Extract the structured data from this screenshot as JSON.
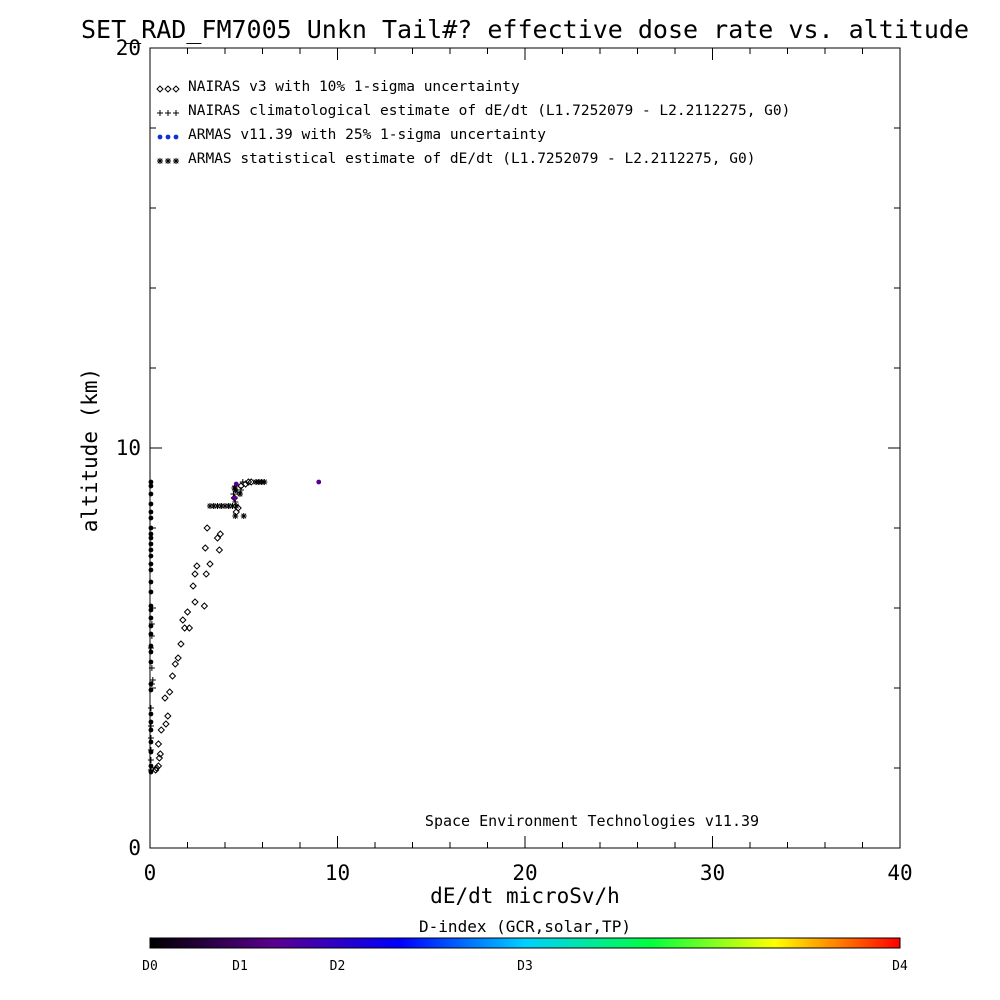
{
  "chart_data": {
    "type": "scatter",
    "title": "SET_RAD_FM7005  Unkn Tail#? effective dose rate vs. altitude",
    "xlabel": "dE/dt microSv/h",
    "ylabel": "altitude (km)",
    "xlim": [
      0,
      40
    ],
    "ylim": [
      0,
      20
    ],
    "x_ticks": [
      0,
      10,
      20,
      30,
      40
    ],
    "y_ticks": [
      0,
      10,
      20
    ],
    "grid": false,
    "legend_position": "top-left",
    "legend": [
      {
        "symbol": "◇◇◇",
        "label": "NAIRAS v3 with 10% 1-sigma uncertainty"
      },
      {
        "symbol": "+++",
        "label": "NAIRAS climatological estimate of dE/dt (L1.7252079 - L2.2112275, G0)"
      },
      {
        "symbol": "●●●",
        "label": "ARMAS v11.39 with 25% 1-sigma uncertainty"
      },
      {
        "symbol": "***",
        "label": "ARMAS statistical estimate of dE/dt (L1.7252079 - L2.2112275, G0)"
      }
    ],
    "annotation": "Space Environment Technologies v11.39",
    "colorbar": {
      "label": "D-index (GCR,solar,TP)",
      "ticks": [
        {
          "label": "D0",
          "value": 0
        },
        {
          "label": "D1",
          "value": 0.12
        },
        {
          "label": "D2",
          "value": 0.25
        },
        {
          "label": "D3",
          "value": 0.5
        },
        {
          "label": "D4",
          "value": 1.0
        }
      ],
      "stops": [
        "#000000",
        "#5a0090",
        "#0000ff",
        "#00d0ff",
        "#00ff40",
        "#ffff00",
        "#ff0000"
      ]
    },
    "series": [
      {
        "name": "NAIRAS v3 with 10% 1-sigma uncertainty",
        "marker": "diamond",
        "color": "#000000",
        "points": [
          [
            0.3,
            1.95
          ],
          [
            0.35,
            2.0
          ],
          [
            0.45,
            2.05
          ],
          [
            0.5,
            2.25
          ],
          [
            0.55,
            2.35
          ],
          [
            0.45,
            2.6
          ],
          [
            0.6,
            2.95
          ],
          [
            0.85,
            3.1
          ],
          [
            0.95,
            3.3
          ],
          [
            0.8,
            3.75
          ],
          [
            1.05,
            3.9
          ],
          [
            1.2,
            4.3
          ],
          [
            1.35,
            4.6
          ],
          [
            1.5,
            4.75
          ],
          [
            1.65,
            5.1
          ],
          [
            1.85,
            5.5
          ],
          [
            2.1,
            5.5
          ],
          [
            1.75,
            5.7
          ],
          [
            2.0,
            5.9
          ],
          [
            2.4,
            6.15
          ],
          [
            2.9,
            6.05
          ],
          [
            2.3,
            6.55
          ],
          [
            2.4,
            6.85
          ],
          [
            3.0,
            6.85
          ],
          [
            2.5,
            7.05
          ],
          [
            3.2,
            7.1
          ],
          [
            2.95,
            7.5
          ],
          [
            3.7,
            7.45
          ],
          [
            3.6,
            7.75
          ],
          [
            3.75,
            7.85
          ],
          [
            3.05,
            8.0
          ],
          [
            4.6,
            8.4
          ],
          [
            4.7,
            8.5
          ],
          [
            4.5,
            8.75
          ],
          [
            4.85,
            9.05
          ],
          [
            5.1,
            9.1
          ],
          [
            5.25,
            9.15
          ],
          [
            5.4,
            9.15
          ]
        ]
      },
      {
        "name": "NAIRAS climatological estimate of dE/dt (L1.7252079 - L2.2112275, G0)",
        "marker": "plus",
        "color": "#000000",
        "points": [
          [
            0.05,
            1.95
          ],
          [
            0.05,
            2.2
          ],
          [
            0.05,
            2.45
          ],
          [
            0.05,
            2.75
          ],
          [
            0.05,
            3.05
          ],
          [
            0.05,
            3.5
          ],
          [
            0.1,
            4.1
          ],
          [
            0.15,
            4.2
          ],
          [
            0.1,
            4.5
          ],
          [
            0.05,
            5.0
          ],
          [
            0.1,
            5.3
          ],
          [
            0.1,
            5.6
          ],
          [
            3.4,
            8.55
          ],
          [
            3.8,
            8.55
          ],
          [
            4.2,
            8.55
          ],
          [
            4.55,
            8.65
          ],
          [
            4.45,
            8.85
          ],
          [
            4.65,
            8.9
          ],
          [
            4.85,
            8.95
          ],
          [
            4.6,
            9.05
          ],
          [
            4.95,
            9.15
          ]
        ]
      },
      {
        "name": "ARMAS v11.39 with 25% 1-sigma uncertainty",
        "marker": "dot",
        "color": "#000000",
        "points": [
          [
            0.05,
            1.9
          ],
          [
            0.05,
            2.05
          ],
          [
            0.05,
            2.4
          ],
          [
            0.05,
            2.65
          ],
          [
            0.05,
            2.95
          ],
          [
            0.05,
            3.15
          ],
          [
            0.05,
            3.35
          ],
          [
            0.05,
            3.95
          ],
          [
            0.05,
            4.1
          ],
          [
            0.05,
            4.65
          ],
          [
            0.05,
            4.9
          ],
          [
            0.05,
            5.05
          ],
          [
            0.05,
            5.35
          ],
          [
            0.05,
            5.55
          ],
          [
            0.05,
            5.75
          ],
          [
            0.05,
            5.95
          ],
          [
            0.05,
            6.05
          ],
          [
            0.05,
            6.4
          ],
          [
            0.05,
            6.65
          ],
          [
            0.05,
            6.95
          ],
          [
            0.05,
            7.1
          ],
          [
            0.05,
            7.3
          ],
          [
            0.05,
            7.45
          ],
          [
            0.05,
            7.6
          ],
          [
            0.05,
            7.75
          ],
          [
            0.05,
            7.85
          ],
          [
            0.05,
            8.0
          ],
          [
            0.05,
            8.25
          ],
          [
            0.05,
            8.4
          ],
          [
            0.05,
            8.6
          ],
          [
            0.05,
            8.85
          ],
          [
            0.05,
            9.05
          ],
          [
            0.05,
            9.15
          ],
          [
            4.5,
            8.75,
            "#5a0090"
          ],
          [
            4.6,
            9.1,
            "#5a0090"
          ],
          [
            9.0,
            9.15,
            "#5a0090"
          ]
        ]
      },
      {
        "name": "ARMAS statistical estimate of dE/dt (L1.7252079 - L2.2112275, G0)",
        "marker": "star",
        "color": "#000000",
        "points": [
          [
            3.2,
            8.55
          ],
          [
            3.4,
            8.55
          ],
          [
            3.6,
            8.55
          ],
          [
            3.8,
            8.55
          ],
          [
            4.0,
            8.55
          ],
          [
            4.2,
            8.55
          ],
          [
            4.4,
            8.55
          ],
          [
            4.6,
            8.55
          ],
          [
            4.55,
            8.3
          ],
          [
            4.8,
            8.85
          ],
          [
            4.55,
            8.95
          ],
          [
            4.5,
            9.0
          ],
          [
            5.0,
            8.3
          ],
          [
            5.65,
            9.15
          ],
          [
            5.8,
            9.15
          ],
          [
            5.95,
            9.15
          ],
          [
            6.1,
            9.15
          ]
        ]
      }
    ]
  }
}
